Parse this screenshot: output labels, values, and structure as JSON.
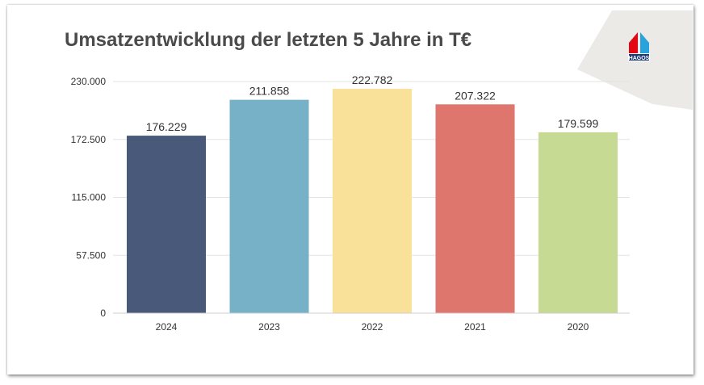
{
  "header": {
    "title": "Umsatzentwicklung der letzten 5 Jahre in T€",
    "logo_text": "HAGOS"
  },
  "colors": {
    "background_corner": "#ebeae7",
    "logo_red": "#e30613",
    "logo_blue": "#2aa3dc"
  },
  "chart_data": {
    "type": "bar",
    "title": "Umsatzentwicklung der letzten 5 Jahre in T€",
    "xlabel": "",
    "ylabel": "",
    "categories": [
      "2024",
      "2023",
      "2022",
      "2021",
      "2020"
    ],
    "values": [
      176229,
      211858,
      222782,
      207322,
      179599
    ],
    "value_labels": [
      "176.229",
      "211.858",
      "222.782",
      "207.322",
      "179.599"
    ],
    "bar_colors": [
      "#48597a",
      "#77b1c7",
      "#f9e19a",
      "#de766d",
      "#c6da94"
    ],
    "ylim": [
      0,
      230000
    ],
    "yticks": [
      0,
      57500,
      115000,
      172500,
      230000
    ],
    "ytick_labels": [
      "0",
      "57.500",
      "115.000",
      "172.500",
      "230.000"
    ],
    "grid": true,
    "legend": "none"
  }
}
